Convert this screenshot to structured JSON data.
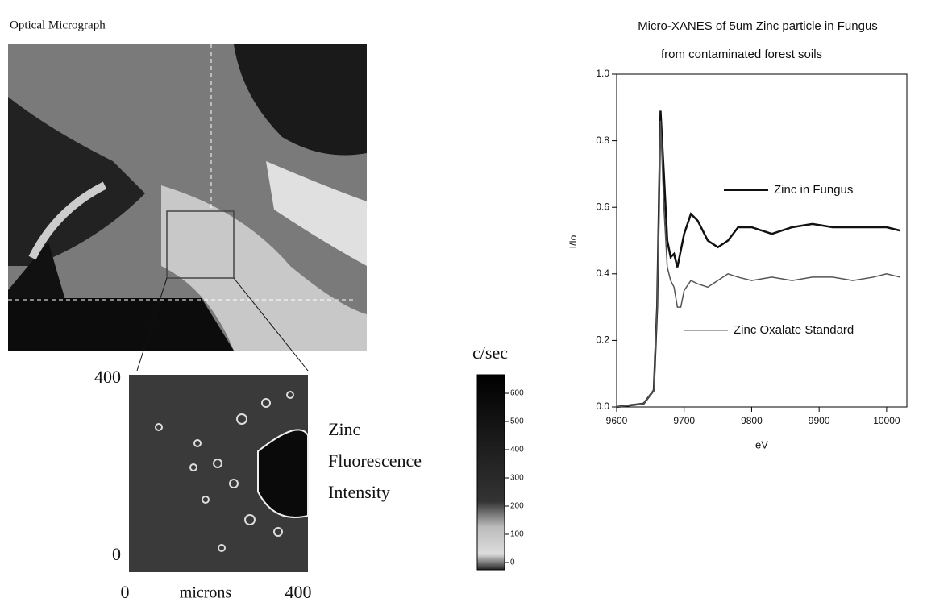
{
  "micrograph": {
    "title": "Optical Micrograph"
  },
  "fluorescence_map": {
    "label_lines": [
      "Zinc",
      "Fluorescence",
      "Intensity"
    ],
    "x_axis_label": "microns",
    "xticks": [
      0,
      400
    ],
    "yticks": [
      0,
      400
    ],
    "colorbar": {
      "title": "c/sec",
      "ticks": [
        0,
        100,
        200,
        300,
        400,
        500,
        600
      ]
    }
  },
  "chart_data": {
    "type": "line",
    "title": "Micro-XANES of 5um Zinc particle in Fungus",
    "subtitle": "from contaminated forest soils",
    "x_label": "eV",
    "y_label": "I/Io",
    "xlim": [
      9600,
      10030
    ],
    "xticks": [
      9600,
      9700,
      9800,
      9900,
      10000
    ],
    "ylim": [
      0,
      1
    ],
    "yticks": [
      {
        "value": 0,
        "label": "0.0"
      },
      0.2,
      0.4,
      0.6,
      0.8,
      {
        "value": 1,
        "label": "1.0"
      }
    ],
    "x": [
      9600,
      9640,
      9655,
      9660,
      9665,
      9670,
      9675,
      9680,
      9685,
      9690,
      9695,
      9700,
      9710,
      9720,
      9735,
      9750,
      9765,
      9780,
      9800,
      9830,
      9860,
      9890,
      9920,
      9950,
      9980,
      10000,
      10020
    ],
    "series": [
      {
        "name": "Zinc in Fungus",
        "color": "#111111",
        "values": [
          0,
          0.01,
          0.05,
          0.3,
          0.89,
          0.7,
          0.5,
          0.45,
          0.46,
          0.42,
          0.47,
          0.52,
          0.58,
          0.56,
          0.5,
          0.48,
          0.5,
          0.54,
          0.54,
          0.52,
          0.54,
          0.55,
          0.54,
          0.54,
          0.54,
          0.54,
          0.53
        ]
      },
      {
        "name": "Zinc Oxalate Standard",
        "color": "#555555",
        "values": [
          0,
          0.01,
          0.05,
          0.3,
          0.86,
          0.6,
          0.42,
          0.38,
          0.36,
          0.3,
          0.3,
          0.35,
          0.38,
          0.37,
          0.36,
          0.38,
          0.4,
          0.39,
          0.38,
          0.39,
          0.38,
          0.39,
          0.39,
          0.38,
          0.39,
          0.4,
          0.39
        ]
      }
    ]
  }
}
